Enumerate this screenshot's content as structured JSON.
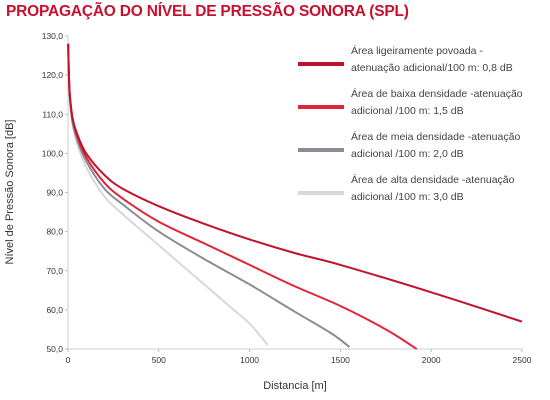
{
  "chart_data": {
    "type": "line",
    "title": "PROPAGAÇÃO DO NÍVEL DE PRESSÃO SONORA (SPL)",
    "xlabel": "Distancia [m]",
    "ylabel": "Nível de Pressão Sonora [dB]",
    "xlim": [
      0,
      2500
    ],
    "ylim": [
      50,
      130
    ],
    "x_ticks": [
      "0",
      "500",
      "1000",
      "1500",
      "2000",
      "2500"
    ],
    "y_ticks": [
      "50,0",
      "60,0",
      "70,0",
      "80,0",
      "90,0",
      "100,0",
      "110,0",
      "120,0",
      "130,0"
    ],
    "grid": false,
    "legend_position": "top-right",
    "series": [
      {
        "name": "Área ligeiramente povoada - atenuação adicional/100 m: 0,8 dB",
        "legend_lines": [
          "Área ligeiramente povoada -",
          "atenuação adicional/100 m: 0,8 dB"
        ],
        "color": "#c0132b",
        "x": [
          1,
          5,
          10,
          25,
          50,
          100,
          200,
          300,
          500,
          750,
          1000,
          1250,
          1500,
          2000,
          2500
        ],
        "y": [
          128,
          120,
          115,
          109,
          105,
          100,
          94.5,
          91,
          86.5,
          82,
          78,
          74.5,
          71.5,
          64.5,
          57
        ]
      },
      {
        "name": "Área de baixa densidade -atenuação adicional /100 m: 1,5 dB",
        "legend_lines": [
          "Área de baixa densidade -atenuação",
          "adicional /100 m: 1,5 dB"
        ],
        "color": "#e0243a",
        "x": [
          1,
          5,
          10,
          25,
          50,
          100,
          200,
          300,
          500,
          750,
          1000,
          1250,
          1500,
          1750,
          1920
        ],
        "y": [
          128,
          120,
          115,
          109,
          104.5,
          99,
          92.5,
          88.5,
          82.5,
          77,
          71.5,
          66,
          61,
          55,
          50
        ]
      },
      {
        "name": "Área de meia densidade -atenuação adicional /100 m: 2,0 dB",
        "legend_lines": [
          "Área de meia densidade -atenuação",
          "adicional /100 m: 2,0 dB"
        ],
        "color": "#8a8e94",
        "x": [
          1,
          5,
          10,
          25,
          50,
          100,
          200,
          300,
          500,
          750,
          1000,
          1250,
          1450,
          1550
        ],
        "y": [
          128,
          120,
          114.5,
          108,
          103.5,
          98,
          91,
          87,
          80,
          73,
          66.5,
          59.5,
          54,
          50.5
        ]
      },
      {
        "name": "Área de alta densidade -atenuação adicional /100 m: 3,0 dB",
        "legend_lines": [
          "Área de alta densidade -atenuação",
          "adicional /100 m: 3,0 dB"
        ],
        "color": "#d6d8db",
        "x": [
          1,
          5,
          10,
          25,
          50,
          100,
          200,
          300,
          500,
          750,
          900,
          1000,
          1100
        ],
        "y": [
          128,
          119.5,
          114,
          107.5,
          102.5,
          96.5,
          89,
          84.5,
          76.5,
          66.5,
          60.5,
          56.5,
          51
        ]
      }
    ]
  }
}
